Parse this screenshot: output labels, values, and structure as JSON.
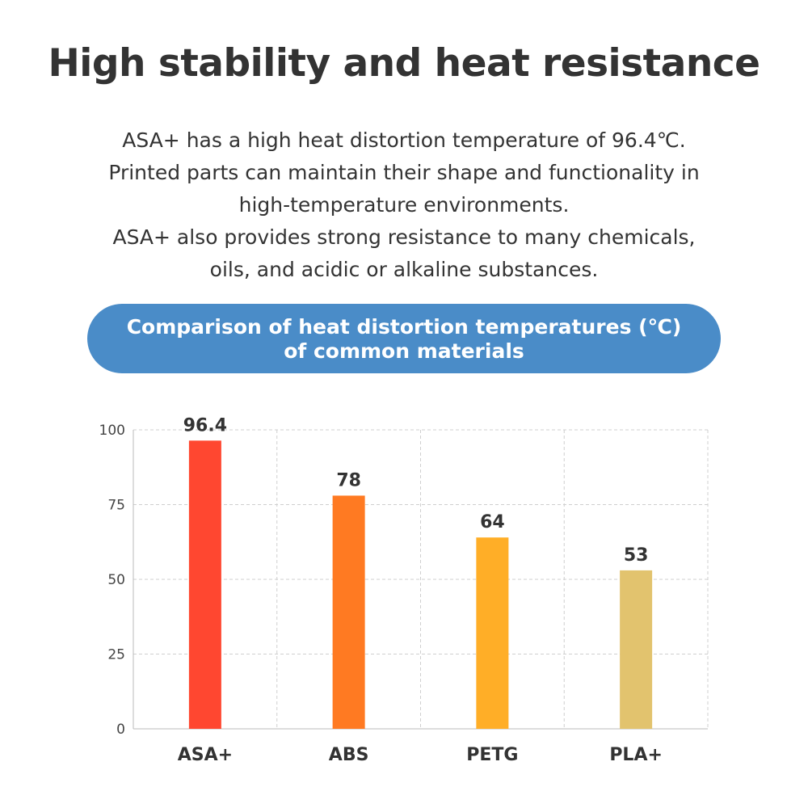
{
  "headline": "High stability and heat resistance",
  "description": [
    "ASA+ has a high heat distortion temperature of 96.4℃.",
    "Printed parts can maintain their shape and functionality in",
    "high-temperature environments.",
    "ASA+ also provides strong resistance to many chemicals,",
    "oils, and acidic or alkaline substances."
  ],
  "chart_title": [
    "Comparison of heat distortion temperatures (℃)",
    "of common materials"
  ],
  "colors": {
    "pill": "#4a8cc8",
    "grid": "#cfcfcf"
  },
  "chart_data": {
    "type": "bar",
    "title": "Comparison of heat distortion temperatures (℃) of common materials",
    "xlabel": "",
    "ylabel": "",
    "categories": [
      "ASA+",
      "ABS",
      "PETG",
      "PLA+"
    ],
    "values": [
      96.4,
      78,
      64,
      53
    ],
    "value_labels": [
      "96.4",
      "78",
      "64",
      "53"
    ],
    "bar_colors": [
      "#ff4730",
      "#ff7a22",
      "#ffae27",
      "#e2c36e"
    ],
    "ylim": [
      0,
      100
    ],
    "yticks": [
      0,
      25,
      50,
      75,
      100
    ],
    "grid": true
  }
}
